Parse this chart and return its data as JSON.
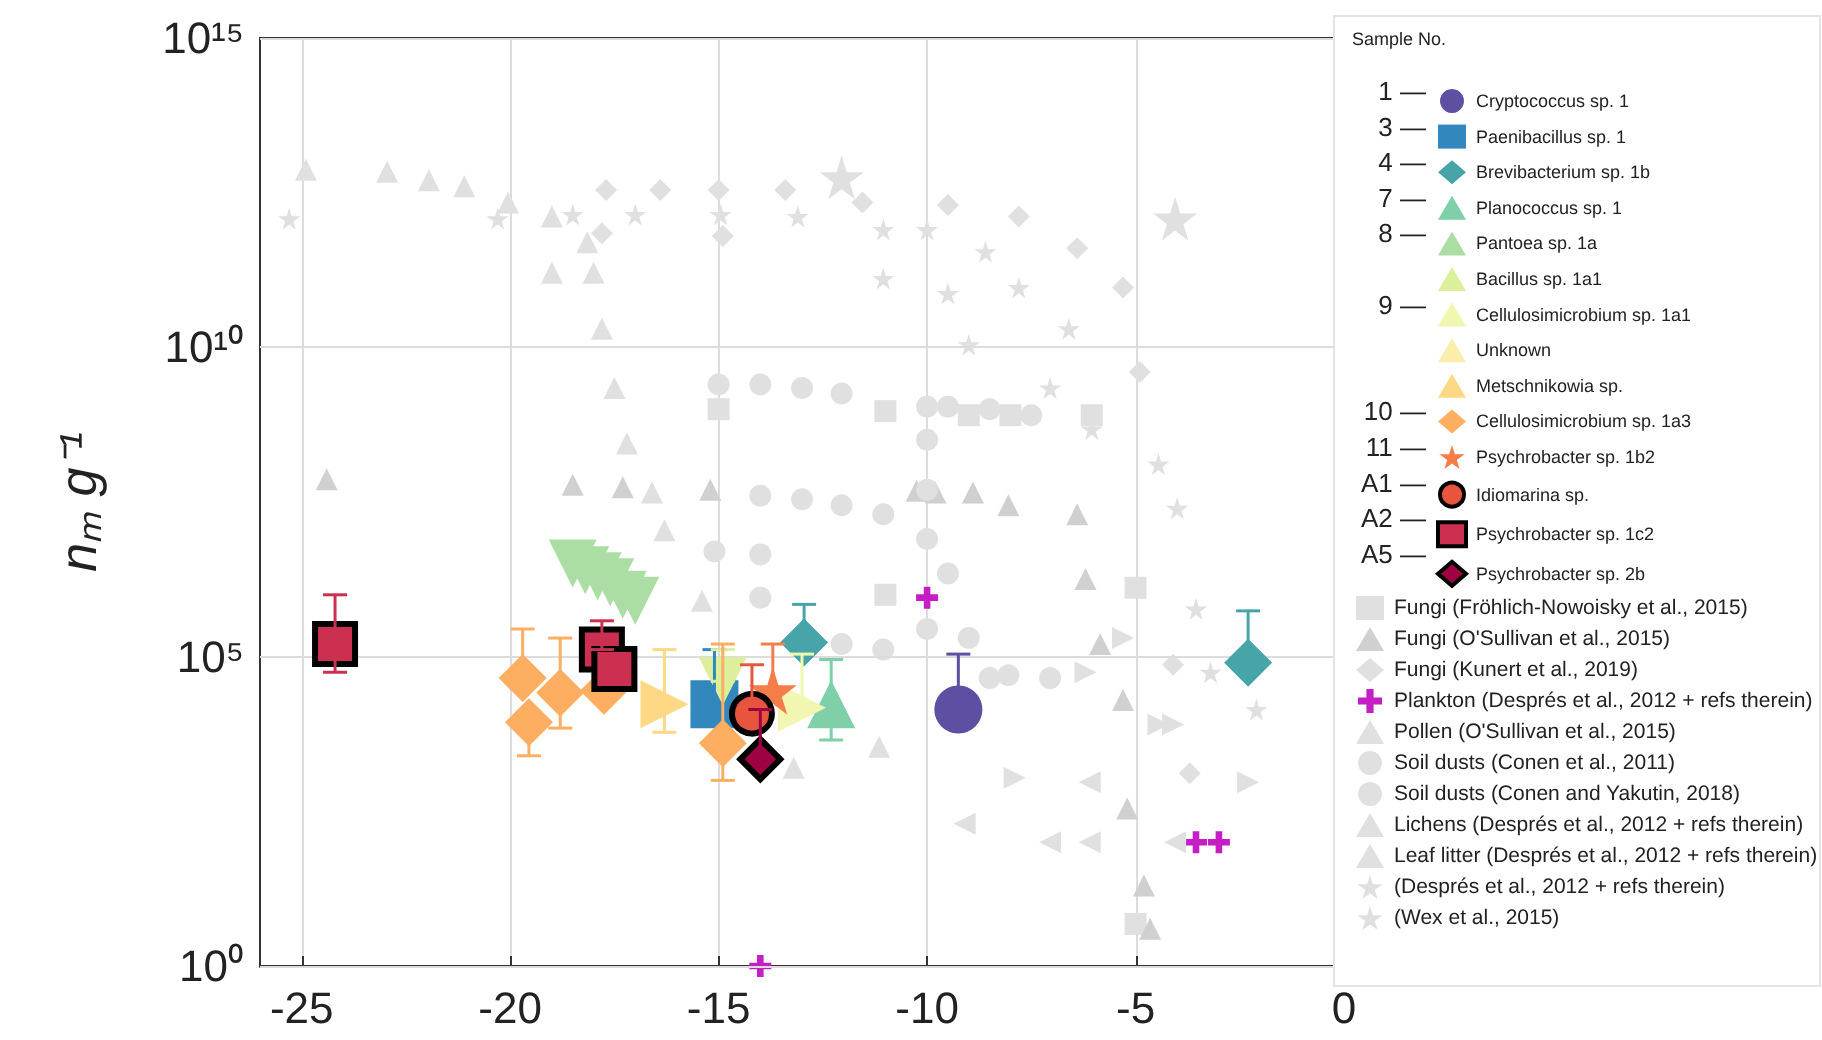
{
  "chart_data": {
    "type": "scatter",
    "ylabel": "nₘ g⁻¹",
    "legend_title": "Sample No.",
    "legend": "right",
    "grid": true,
    "log": "y",
    "xlim": [
      -26,
      0
    ],
    "xticks": [
      -25,
      -20,
      -15,
      -10,
      -5,
      0
    ],
    "ylim": [
      1,
      1000000000000000.0
    ],
    "yticks": [
      {
        "value": 1,
        "label": "10⁰"
      },
      {
        "value": 10,
        "label": null
      },
      {
        "value": 100,
        "label": null
      },
      {
        "value": 1000,
        "label": null
      },
      {
        "value": 10000,
        "label": null
      },
      {
        "value": 100000,
        "label": "10⁵"
      },
      {
        "value": 1000000,
        "label": null
      },
      {
        "value": 10000000,
        "label": null
      },
      {
        "value": 100000000,
        "label": null
      },
      {
        "value": 1000000000,
        "label": null
      },
      {
        "value": 10000000000,
        "label": "10¹⁰"
      },
      {
        "value": 100000000000,
        "label": null
      },
      {
        "value": 1000000000000,
        "label": null
      },
      {
        "value": 10000000000000,
        "label": null
      },
      {
        "value": 100000000000000,
        "label": null
      },
      {
        "value": 1000000000000000,
        "label": "10¹⁵"
      }
    ],
    "annotations": [
      "1 —",
      "3 —",
      "4 —",
      "7 —",
      "8 —",
      "9 —",
      "10 —",
      "11 —",
      "A1 —",
      "A2 —",
      "A5 —"
    ],
    "series": [
      {
        "name": "Cryptococcus sp. 1",
        "color": "#5e4fa2",
        "marker": "circle",
        "x": [
          -9.25
        ],
        "values": [
          14000.0
        ],
        "errors": [
          [
            14000.0,
            110000.0
          ]
        ]
      },
      {
        "name": "Paenibacillus sp. 1",
        "color": "#3288bd",
        "marker": "square",
        "x": [
          -15.1
        ],
        "values": [
          17000.0
        ],
        "errors": [
          [
            17000.0,
            130000.0
          ]
        ]
      },
      {
        "name": "Brevibacterium sp. 1b",
        "color": "#47a5aa",
        "marker": "diamond",
        "x": [
          -12.95,
          -2.3
        ],
        "values": [
          170000.0,
          80000.0
        ],
        "errors": [
          [
            170000.0,
            700000.0
          ],
          [
            80000.0,
            550000.0
          ]
        ]
      },
      {
        "name": "Planococcus sp. 1",
        "color": "#7fcfa8",
        "marker": "triangle",
        "x": [
          -12.3
        ],
        "values": [
          17000.0
        ],
        "errors": [
          [
            4500.0,
            90000.0
          ]
        ]
      },
      {
        "name": "Pantoea sp. 1a",
        "color": "#abdda4",
        "marker": "triangle-down",
        "x": [
          -18.5,
          -18.2,
          -17.9,
          -17.6,
          -17.3,
          -17.0
        ],
        "values": [
          3200000.0,
          2500000.0,
          2000000.0,
          1600000.0,
          1000000.0,
          800000.0
        ]
      },
      {
        "name": "Bacillus sp. 1a1",
        "color": "#dcf09c",
        "marker": "triangle-down",
        "x": [
          -14.9
        ],
        "values": [
          40000.0
        ],
        "errors": [
          [
            40000.0,
            130000.0
          ]
        ]
      },
      {
        "name": "Cellulosimicrobium sp. 1a1",
        "color": "#f1f7b0",
        "marker": "triangle-right",
        "x": [
          -13.0
        ],
        "values": [
          15000.0
        ],
        "errors": [
          [
            15000.0,
            110000.0
          ]
        ]
      },
      {
        "name": "Unknown",
        "color": "#fbeeaa",
        "marker": "triangle-right",
        "x": [
          null
        ],
        "values": [
          null
        ]
      },
      {
        "name": "Metschnikowia sp.",
        "color": "#fed884",
        "marker": "triangle-right",
        "x": [
          -16.3
        ],
        "values": [
          17000.0
        ],
        "errors": [
          [
            6000.0,
            130000.0
          ]
        ]
      },
      {
        "name": "Cellulosimicrobium sp. 1a3",
        "color": "#fdae61",
        "marker": "diamond",
        "x": [
          -19.7,
          -19.55,
          -18.8,
          -17.75,
          -14.9
        ],
        "values": [
          45000.0,
          8700.0,
          26000.0,
          28000.0,
          4000.0
        ],
        "errors": [
          [
            45000.0,
            280000.0
          ],
          [
            2500.0,
            8700.0
          ],
          [
            7000.0,
            200000.0
          ],
          null,
          [
            1000.0,
            160000.0
          ]
        ]
      },
      {
        "name": "Psychrobacter sp. 1b2",
        "color": "#f57d4a",
        "marker": "star",
        "x": [
          -13.7
        ],
        "values": [
          28000.0
        ],
        "errors": [
          [
            28000.0,
            160000.0
          ]
        ]
      },
      {
        "name": "Idiomarina sp.",
        "color": "#e8553f",
        "marker": "circle",
        "x": [
          -14.2
        ],
        "values": [
          12000.0
        ],
        "errors": [
          [
            12000.0,
            74000.0
          ]
        ]
      },
      {
        "name": "Psychrobacter sp. 1c2",
        "color": "#cc3050",
        "marker": "square",
        "x": [
          -24.2,
          -17.8,
          -17.5
        ],
        "values": [
          160000.0,
          130000.0,
          63000.0
        ],
        "errors": [
          [
            56000.0,
            1000000.0
          ],
          [
            130000.0,
            380000.0
          ],
          null
        ]
      },
      {
        "name": "Psychrobacter sp. 2b",
        "color": "#9e0142",
        "marker": "diamond",
        "x": [
          -14.0
        ],
        "values": [
          2200.0
        ],
        "errors": [
          [
            2200.0,
            14000.0
          ]
        ]
      },
      {
        "name": "Fungi (Fröhlich-Nowoisky et al., 2015)",
        "color": "#e0e0e0",
        "marker": "square",
        "x": [
          -15,
          -11,
          -9,
          -8,
          -6.05,
          -11,
          -5,
          -5
        ],
        "values": [
          1000000000.0,
          930000000.0,
          800000000.0,
          800000000.0,
          800000000.0,
          1000000.0,
          1300000.0,
          4.8
        ]
      },
      {
        "name": "Fungi (O'Sullivan et al., 2015)",
        "color": "#d0d0d0",
        "marker": "triangle",
        "x": [
          -24.4,
          -18.5,
          -17.3,
          -15.2,
          -10.25,
          -9.8,
          -8.9,
          -8.05,
          -6.4,
          -6.2,
          -5.85,
          -5.3,
          -5.2,
          -4.8,
          -4.65
        ],
        "values": [
          74000000.0,
          60000000.0,
          55000000.0,
          50000000.0,
          48000000.0,
          45000000.0,
          45000000.0,
          28000000.0,
          20000000.0,
          1800000.0,
          160000.0,
          20000.0,
          350,
          20,
          4
        ]
      },
      {
        "name": "Fungi (Kunert et al., 2019)",
        "color": "#e0e0e0",
        "marker": "diamond",
        "x": [
          -17.7,
          -16.4,
          -15,
          -13.4,
          -11.55,
          -9.5,
          -7.8,
          -6.4,
          -5.3,
          -4.9,
          -17.8,
          -14.9,
          -4.1,
          -3.7
        ],
        "values": [
          3500000000000.0,
          3500000000000.0,
          3500000000000.0,
          3500000000000.0,
          2200000000000.0,
          2000000000000.0,
          1300000000000.0,
          400000000000.0,
          93000000000.0,
          4000000000.0,
          700000000000.0,
          630000000000.0,
          74000.0,
          1300.0
        ]
      },
      {
        "name": "Plankton (Després et al., 2012 + refs therein)",
        "color": "#c41ec4",
        "marker": "cross",
        "x": [
          -10.0,
          -14.0,
          -3.55,
          -3.0
        ],
        "values": [
          900000.0,
          1,
          100,
          100
        ]
      },
      {
        "name": "Pollen (O'Sullivan et al., 2015)",
        "color": "#e0e0e0",
        "marker": "triangle",
        "x": [
          -24.9,
          -22.95,
          -21.95,
          -21.1,
          -20.05,
          -19.0,
          -18.15,
          -18.0,
          -19.0,
          -17.8,
          -17.5,
          -17.2,
          -16.6,
          -16.3,
          -15.4,
          -13.2,
          -11.15
        ],
        "values": [
          7400000000000.0,
          6900000000000.0,
          5000000000000.0,
          4000000000000.0,
          2200000000000.0,
          1300000000000.0,
          500000000000.0,
          160000000000.0,
          160000000000.0,
          20000000000.0,
          2200000000.0,
          280000000.0,
          45000000.0,
          11000000.0,
          800000.0,
          1600.0,
          3500.0
        ]
      },
      {
        "name": "Soil dusts (Conen et al., 2011)",
        "color": "#e0e0e0",
        "marker": "circle",
        "x": [
          -15.0,
          -14.0,
          -13.0,
          -12.05,
          -14.0,
          -13.0,
          -12.05,
          -11.05,
          -15.1,
          -14.0,
          -14.0,
          -12.05,
          -11.05,
          -7.05,
          -8.05
        ],
        "values": [
          2500000000.0,
          2500000000.0,
          2200000000.0,
          1800000000.0,
          40000000.0,
          35000000.0,
          28000000.0,
          20000000.0,
          5000000.0,
          4500000.0,
          900000.0,
          160000.0,
          130000.0,
          45000.0,
          50000.0
        ]
      },
      {
        "name": "Soil dusts (Conen and Yakutin, 2018)",
        "color": "#e0e0e0",
        "marker": "circle",
        "x": [
          -10,
          -10,
          -9.5,
          -8.5,
          -7.5,
          -10,
          -10,
          -10,
          -9.0,
          -8.5,
          -9.5
        ],
        "values": [
          1100000000.0,
          320000000.0,
          1100000000.0,
          1000000000.0,
          800000000.0,
          50000000.0,
          8000000.0,
          280000.0,
          200000.0,
          45000.0,
          2200000.0
        ]
      },
      {
        "name": "Lichens (Després et al., 2012 + refs therein)",
        "color": "#e0e0e0",
        "marker": "triangle-right",
        "x": [
          -5.3,
          -4.45,
          -4.1,
          -7.9,
          -2.3,
          -6.2
        ],
        "values": [
          200000.0,
          8000.0,
          8000.0,
          1100.0,
          930,
          56000.0
        ]
      },
      {
        "name": "Leaf litter (Després et al., 2012 + refs therein)",
        "color": "#e0e0e0",
        "marker": "triangle-left",
        "x": [
          -9.1,
          -7.05,
          -6.1,
          -6.1,
          -4.05
        ],
        "values": [
          200,
          100,
          100,
          930,
          100
        ]
      },
      {
        "name": "(Després et al., 2012 + refs therein)",
        "color": "#e0e0e0",
        "marker": "star",
        "x": [
          -12.05,
          -4.05
        ],
        "values": [
          5600000000000.0,
          1200000000000.0
        ]
      },
      {
        "name": "(Wex et al., 2015)",
        "color": "#e0e0e0",
        "marker": "star",
        "x": [
          -25.3,
          -20.3,
          -18.5,
          -17.0,
          -14.95,
          -13.1,
          -11.05,
          -10,
          -8.6,
          -7.8,
          -6.6,
          -9.5,
          -9.0,
          -11.05,
          -7.05,
          -6.05,
          -4.45,
          -4.0,
          -3.55,
          -3.2,
          -2.1
        ],
        "values": [
          1200000000000.0,
          1200000000000.0,
          1400000000000.0,
          1400000000000.0,
          1400000000000.0,
          1300000000000.0,
          800000000000.0,
          800000000000.0,
          350000000000.0,
          93000000000.0,
          20000000000.0,
          74000000000.0,
          11000000000.0,
          130000000000.0,
          2200000000.0,
          480000000.0,
          130000000.0,
          25000000.0,
          590000.0,
          56000.0,
          14000.0
        ]
      }
    ]
  }
}
